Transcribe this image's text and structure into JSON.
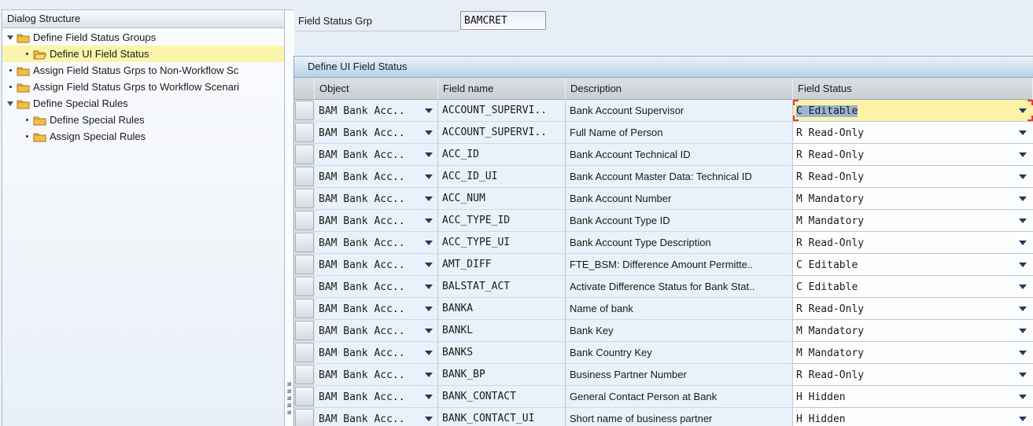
{
  "dialog_structure": {
    "title": "Dialog Structure",
    "items": [
      {
        "label": "Define Field Status Groups",
        "level": 1,
        "marker": "expanded",
        "folder": "closed",
        "selected": false
      },
      {
        "label": "Define UI Field Status",
        "level": 2,
        "marker": "bullet",
        "folder": "open",
        "selected": true
      },
      {
        "label": "Assign Field Status Grps to Non-Workflow Sc",
        "level": 1,
        "marker": "bullet",
        "folder": "closed",
        "selected": false
      },
      {
        "label": "Assign Field Status Grps to Workflow Scenari",
        "level": 1,
        "marker": "bullet",
        "folder": "closed",
        "selected": false
      },
      {
        "label": "Define Special Rules",
        "level": 1,
        "marker": "expanded",
        "folder": "closed",
        "selected": false
      },
      {
        "label": "Define Special Rules",
        "level": 2,
        "marker": "bullet",
        "folder": "closed",
        "selected": false
      },
      {
        "label": "Assign Special Rules",
        "level": 2,
        "marker": "bullet",
        "folder": "closed",
        "selected": false
      }
    ]
  },
  "form": {
    "field_status_grp": {
      "label": "Field Status Grp",
      "value": "BAMCRET"
    }
  },
  "table": {
    "title": "Define UI Field Status",
    "columns": {
      "object": "Object",
      "field_name": "Field name",
      "description": "Description",
      "field_status": "Field Status"
    },
    "rows": [
      {
        "object": "BAM Bank Acc..",
        "field_name": "ACCOUNT_SUPERVI..",
        "description": "Bank Account Supervisor",
        "field_status": "C Editable",
        "selected": true
      },
      {
        "object": "BAM Bank Acc..",
        "field_name": "ACCOUNT_SUPERVI..",
        "description": "Full Name of Person",
        "field_status": "R Read-Only",
        "selected": false
      },
      {
        "object": "BAM Bank Acc..",
        "field_name": "ACC_ID",
        "description": "Bank Account Technical ID",
        "field_status": "R Read-Only",
        "selected": false
      },
      {
        "object": "BAM Bank Acc..",
        "field_name": "ACC_ID_UI",
        "description": "Bank Account Master Data: Technical ID",
        "field_status": "R Read-Only",
        "selected": false
      },
      {
        "object": "BAM Bank Acc..",
        "field_name": "ACC_NUM",
        "description": "Bank Account Number",
        "field_status": "M Mandatory",
        "selected": false
      },
      {
        "object": "BAM Bank Acc..",
        "field_name": "ACC_TYPE_ID",
        "description": "Bank Account Type ID",
        "field_status": "M Mandatory",
        "selected": false
      },
      {
        "object": "BAM Bank Acc..",
        "field_name": "ACC_TYPE_UI",
        "description": "Bank Account Type Description",
        "field_status": "R Read-Only",
        "selected": false
      },
      {
        "object": "BAM Bank Acc..",
        "field_name": "AMT_DIFF",
        "description": "FTE_BSM: Difference Amount Permitte..",
        "field_status": "C Editable",
        "selected": false
      },
      {
        "object": "BAM Bank Acc..",
        "field_name": "BALSTAT_ACT",
        "description": "Activate Difference Status for Bank Stat..",
        "field_status": "C Editable",
        "selected": false
      },
      {
        "object": "BAM Bank Acc..",
        "field_name": "BANKA",
        "description": "Name of bank",
        "field_status": "R Read-Only",
        "selected": false
      },
      {
        "object": "BAM Bank Acc..",
        "field_name": "BANKL",
        "description": "Bank Key",
        "field_status": "M Mandatory",
        "selected": false
      },
      {
        "object": "BAM Bank Acc..",
        "field_name": "BANKS",
        "description": "Bank Country Key",
        "field_status": "M Mandatory",
        "selected": false
      },
      {
        "object": "BAM Bank Acc..",
        "field_name": "BANK_BP",
        "description": "Business Partner Number",
        "field_status": "R Read-Only",
        "selected": false
      },
      {
        "object": "BAM Bank Acc..",
        "field_name": "BANK_CONTACT",
        "description": "General Contact Person at Bank",
        "field_status": "H Hidden",
        "selected": false
      },
      {
        "object": "BAM Bank Acc..",
        "field_name": "BANK_CONTACT_UI",
        "description": "Short name of business partner",
        "field_status": "H Hidden",
        "selected": false
      }
    ]
  },
  "colors": {
    "selected_row_yellow": "#FDF2A8",
    "tree_selected_yellow": "#FBF5AB",
    "cell_blue": "#E9F2FB",
    "panel_header_blue": "#B7CFE6",
    "selection_marker_red": "#E03C34",
    "text_selection_blue": "#9CB6D2",
    "folder_yellow": "#F3BF3E",
    "dropdown_arrow_navy": "#22395F"
  }
}
